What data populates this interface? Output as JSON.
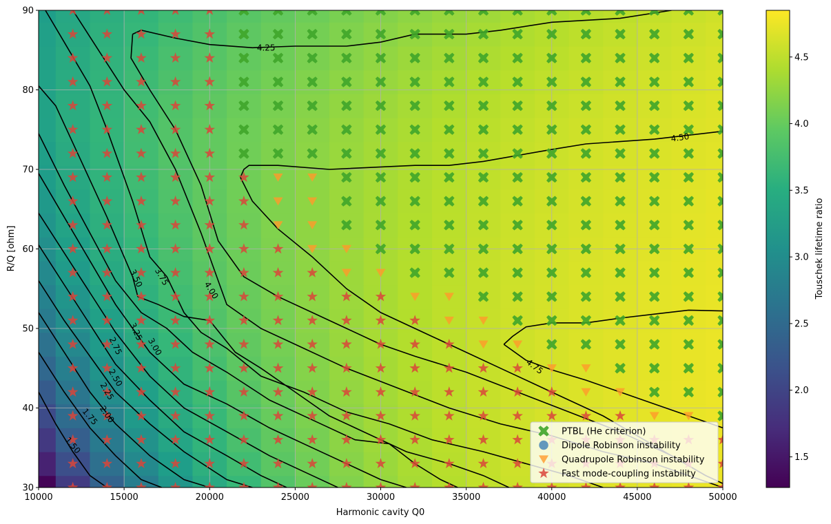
{
  "chart_data": {
    "type": "heatmap",
    "xlabel": "Harmonic cavity Q0",
    "ylabel": "R/Q [ohm]",
    "xlim": [
      10000,
      50000
    ],
    "ylim": [
      30,
      90
    ],
    "x_ticks": [
      10000,
      15000,
      20000,
      25000,
      30000,
      35000,
      40000,
      45000,
      50000
    ],
    "y_ticks": [
      30,
      40,
      50,
      60,
      70,
      80,
      90
    ],
    "grid": true,
    "colormap": "viridis",
    "colorbar": {
      "label": "Touschek lifetime ratio",
      "range": [
        1.27,
        4.85
      ],
      "ticks": [
        1.5,
        2.0,
        2.5,
        3.0,
        3.5,
        4.0,
        4.5
      ]
    },
    "heatmap_grid": {
      "q0_centers": [
        10000,
        12000,
        14000,
        16000,
        18000,
        20000,
        22000,
        24000,
        26000,
        28000,
        30000,
        32000,
        34000,
        36000,
        38000,
        40000,
        42000,
        44000,
        46000,
        48000,
        50000
      ],
      "rq_centers": [
        30,
        33,
        36,
        39,
        42,
        45,
        48,
        51,
        54,
        57,
        60,
        63,
        66,
        69,
        72,
        75,
        78,
        81,
        84,
        87,
        90
      ]
    },
    "contours": [
      {
        "level": "1.50",
        "points": [
          [
            10000,
            42.0
          ],
          [
            11000,
            38.0
          ],
          [
            12000,
            34.5
          ],
          [
            13000,
            31.5
          ],
          [
            14000,
            30.0
          ]
        ]
      },
      {
        "level": "1.75",
        "points": [
          [
            10000,
            47.0
          ],
          [
            11500,
            42.0
          ],
          [
            13000,
            37.5
          ],
          [
            14500,
            34.0
          ],
          [
            16000,
            31.0
          ],
          [
            17200,
            30.0
          ]
        ]
      },
      {
        "level": "2.00",
        "points": [
          [
            10000,
            52.0
          ],
          [
            11500,
            47.0
          ],
          [
            13000,
            42.0
          ],
          [
            14500,
            38.0
          ],
          [
            16500,
            34.0
          ],
          [
            18500,
            31.0
          ],
          [
            20000,
            30.0
          ]
        ]
      },
      {
        "level": "2.25",
        "points": [
          [
            10000,
            56.0
          ],
          [
            11500,
            51.0
          ],
          [
            13000,
            46.5
          ],
          [
            14500,
            42.0
          ],
          [
            16500,
            38.0
          ],
          [
            18500,
            34.5
          ],
          [
            21000,
            31.0
          ],
          [
            22500,
            30.0
          ]
        ]
      },
      {
        "level": "2.50",
        "points": [
          [
            10000,
            60.5
          ],
          [
            11500,
            55.5
          ],
          [
            13000,
            50.5
          ],
          [
            14500,
            45.5
          ],
          [
            16500,
            41.0
          ],
          [
            18500,
            37.0
          ],
          [
            21000,
            34.0
          ],
          [
            23000,
            31.5
          ],
          [
            24500,
            30.0
          ]
        ]
      },
      {
        "level": "2.75",
        "points": [
          [
            10000,
            64.5
          ],
          [
            11500,
            59.5
          ],
          [
            13000,
            54.5
          ],
          [
            14500,
            49.5
          ],
          [
            16500,
            44.0
          ],
          [
            18500,
            40.0
          ],
          [
            21000,
            37.0
          ],
          [
            23500,
            34.0
          ],
          [
            26000,
            31.5
          ],
          [
            27500,
            30.0
          ]
        ]
      },
      {
        "level": "3.00",
        "points": [
          [
            10000,
            69.5
          ],
          [
            11500,
            64.0
          ],
          [
            13000,
            58.5
          ],
          [
            14500,
            53.0
          ],
          [
            16500,
            47.0
          ],
          [
            18500,
            43.0
          ],
          [
            21000,
            40.5
          ],
          [
            23500,
            37.5
          ],
          [
            26000,
            35.0
          ],
          [
            28500,
            32.5
          ],
          [
            30000,
            31.0
          ],
          [
            31500,
            30.0
          ]
        ]
      },
      {
        "level": "3.25",
        "points": [
          [
            10000,
            74.5
          ],
          [
            11500,
            68.0
          ],
          [
            13000,
            62.0
          ],
          [
            14500,
            56.0
          ],
          [
            16000,
            52.0
          ],
          [
            17500,
            50.0
          ],
          [
            19000,
            47.0
          ],
          [
            21000,
            44.5
          ],
          [
            23500,
            41.0
          ],
          [
            26000,
            38.5
          ],
          [
            28500,
            36.0
          ],
          [
            30500,
            35.5
          ],
          [
            32000,
            33.0
          ],
          [
            33500,
            31.0
          ],
          [
            34500,
            30.0
          ]
        ]
      },
      {
        "level": "3.50",
        "points": [
          [
            10000,
            80.5
          ],
          [
            11000,
            78.0
          ],
          [
            12500,
            71.0
          ],
          [
            14000,
            64.0
          ],
          [
            15500,
            56.5
          ],
          [
            15800,
            54.0
          ],
          [
            17000,
            53.0
          ],
          [
            18500,
            51.5
          ],
          [
            20000,
            51.0
          ],
          [
            21500,
            47.0
          ],
          [
            23000,
            45.0
          ],
          [
            25000,
            42.0
          ],
          [
            27000,
            39.0
          ],
          [
            29000,
            37.0
          ],
          [
            31500,
            34.5
          ],
          [
            34000,
            33.0
          ],
          [
            36000,
            31.5
          ],
          [
            37500,
            30.0
          ]
        ]
      },
      {
        "level": "3.75",
        "points": [
          [
            10400,
            90.0
          ],
          [
            11500,
            86.0
          ],
          [
            13000,
            80.5
          ],
          [
            14000,
            75.0
          ],
          [
            15500,
            66.0
          ],
          [
            16500,
            59.0
          ],
          [
            17500,
            56.5
          ],
          [
            18500,
            52.0
          ],
          [
            19500,
            49.5
          ],
          [
            21000,
            47.5
          ],
          [
            23000,
            44.0
          ],
          [
            25500,
            42.0
          ],
          [
            28000,
            39.5
          ],
          [
            30500,
            38.0
          ],
          [
            33000,
            36.0
          ],
          [
            36000,
            34.5
          ],
          [
            38500,
            33.0
          ],
          [
            41000,
            31.5
          ],
          [
            43000,
            30.0
          ]
        ]
      },
      {
        "level": "4.00",
        "points": [
          [
            12000,
            90.0
          ],
          [
            13500,
            85.0
          ],
          [
            15000,
            80.0
          ],
          [
            16500,
            76.0
          ],
          [
            18000,
            70.0
          ],
          [
            19500,
            62.0
          ],
          [
            21000,
            53.0
          ],
          [
            23000,
            50.0
          ],
          [
            25500,
            47.5
          ],
          [
            28000,
            45.0
          ],
          [
            31000,
            42.5
          ],
          [
            34000,
            40.0
          ],
          [
            37000,
            38.0
          ],
          [
            40000,
            36.5
          ],
          [
            43000,
            34.5
          ],
          [
            46000,
            33.0
          ],
          [
            48000,
            31.5
          ],
          [
            50000,
            30.0
          ]
        ]
      },
      {
        "level": "4.25",
        "points": [
          [
            15500,
            87.0
          ],
          [
            16000,
            87.5
          ],
          [
            18000,
            86.5
          ],
          [
            20000,
            85.7
          ],
          [
            22500,
            85.3
          ],
          [
            25000,
            85.5
          ],
          [
            28000,
            85.5
          ],
          [
            30000,
            86.0
          ],
          [
            32000,
            87.0
          ],
          [
            35000,
            87.0
          ],
          [
            37000,
            87.5
          ],
          [
            40000,
            88.5
          ],
          [
            44000,
            89.0
          ],
          [
            47000,
            90.0
          ]
        ]
      },
      {
        "level": "4.25b",
        "points": [
          [
            15500,
            87.0
          ],
          [
            15400,
            84.0
          ],
          [
            16500,
            80.0
          ],
          [
            18000,
            75.0
          ],
          [
            19500,
            68.0
          ],
          [
            20500,
            61.0
          ],
          [
            22000,
            56.5
          ],
          [
            24000,
            54.0
          ],
          [
            26000,
            52.0
          ],
          [
            28000,
            50.0
          ],
          [
            30000,
            48.0
          ],
          [
            32000,
            46.5
          ],
          [
            35000,
            44.5
          ],
          [
            38000,
            42.0
          ],
          [
            41000,
            39.5
          ],
          [
            44000,
            37.0
          ],
          [
            47000,
            34.0
          ],
          [
            49000,
            31.5
          ],
          [
            50000,
            30.5
          ]
        ]
      },
      {
        "level": "4.50",
        "points": [
          [
            21800,
            69.0
          ],
          [
            22000,
            70.0
          ],
          [
            22300,
            70.5
          ],
          [
            24000,
            70.5
          ],
          [
            27000,
            70.0
          ],
          [
            32000,
            70.5
          ],
          [
            34000,
            70.5
          ],
          [
            36000,
            71.0
          ],
          [
            40000,
            72.5
          ],
          [
            42000,
            73.2
          ],
          [
            46000,
            73.8
          ],
          [
            48000,
            74.3
          ],
          [
            50000,
            74.8
          ]
        ]
      },
      {
        "level": "4.50b",
        "points": [
          [
            21800,
            69.0
          ],
          [
            22500,
            66.0
          ],
          [
            24000,
            62.5
          ],
          [
            26000,
            59.0
          ],
          [
            28000,
            55.0
          ],
          [
            30000,
            52.0
          ],
          [
            33000,
            49.0
          ],
          [
            35000,
            47.0
          ],
          [
            37000,
            45.0
          ],
          [
            39000,
            43.0
          ],
          [
            41000,
            41.0
          ],
          [
            43000,
            39.0
          ],
          [
            45000,
            36.5
          ],
          [
            47000,
            34.0
          ],
          [
            49000,
            31.5
          ],
          [
            50000,
            30.5
          ]
        ]
      },
      {
        "level": "4.75",
        "points": [
          [
            37200,
            48.0
          ],
          [
            37700,
            49.0
          ],
          [
            38500,
            50.2
          ],
          [
            40000,
            50.7
          ],
          [
            42000,
            50.7
          ],
          [
            44000,
            51.3
          ],
          [
            46000,
            51.8
          ],
          [
            48000,
            52.3
          ],
          [
            50000,
            52.2
          ]
        ]
      },
      {
        "level": "4.75b",
        "points": [
          [
            37200,
            48.0
          ],
          [
            38500,
            46.0
          ],
          [
            40000,
            44.8
          ],
          [
            42000,
            43.5
          ],
          [
            44000,
            42.0
          ],
          [
            46000,
            40.5
          ],
          [
            48000,
            39.0
          ],
          [
            50000,
            37.5
          ]
        ]
      }
    ],
    "contour_labels": [
      {
        "text": "4.25",
        "x": 23300,
        "y": 85.3,
        "angle": 0
      },
      {
        "text": "4.50",
        "x": 47500,
        "y": 74.0,
        "angle": -8
      },
      {
        "text": "4.75",
        "x": 39000,
        "y": 45.2,
        "angle": 38
      },
      {
        "text": "4.00",
        "x": 20100,
        "y": 54.8,
        "angle": 58
      },
      {
        "text": "3.75",
        "x": 17200,
        "y": 56.5,
        "angle": 60
      },
      {
        "text": "3.50",
        "x": 15700,
        "y": 56.3,
        "angle": 65
      },
      {
        "text": "3.25",
        "x": 15700,
        "y": 49.6,
        "angle": 65
      },
      {
        "text": "3.00",
        "x": 16800,
        "y": 47.7,
        "angle": 60
      },
      {
        "text": "2.75",
        "x": 14500,
        "y": 47.8,
        "angle": 65
      },
      {
        "text": "2.50",
        "x": 14500,
        "y": 43.8,
        "angle": 60
      },
      {
        "text": "2.25",
        "x": 14000,
        "y": 42.1,
        "angle": 60
      },
      {
        "text": "2.00",
        "x": 14000,
        "y": 39.2,
        "angle": 55
      },
      {
        "text": "1.75",
        "x": 13000,
        "y": 38.9,
        "angle": 50
      },
      {
        "text": "1.50",
        "x": 12000,
        "y": 35.3,
        "angle": 50
      }
    ],
    "series": [
      {
        "name": "PTBL (He criterion)",
        "marker": "X",
        "color": "#3fa52a"
      },
      {
        "name": "Dipole Robinson instability",
        "marker": "o",
        "color": "#3d7fb5"
      },
      {
        "name": "Quadrupole Robinson instability",
        "marker": "v",
        "color": "#ff9a2a"
      },
      {
        "name": "Fast mode-coupling instability",
        "marker": "*",
        "color": "#d9453a"
      }
    ],
    "legend": {
      "position": "lower right"
    }
  }
}
